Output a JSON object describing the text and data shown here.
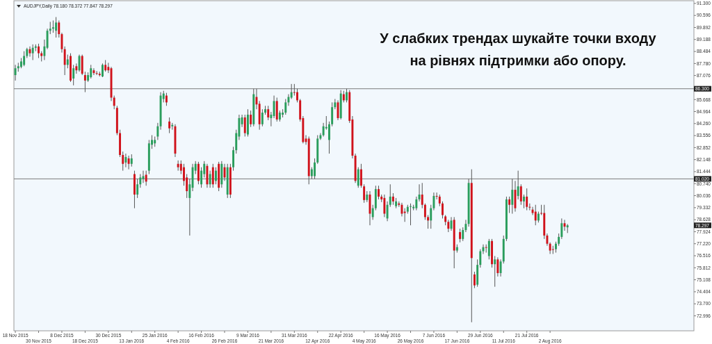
{
  "chart_data": {
    "type": "candlestick",
    "title": "AUDJPY,Daily 78.180 78.372 77.847 78.297",
    "categories": [
      "18 Nov 2015",
      null,
      null,
      null,
      null,
      null,
      null,
      null,
      "30 Nov 2015",
      null,
      null,
      null,
      null,
      null,
      null,
      null,
      "8 Dec 2015",
      null,
      null,
      null,
      null,
      null,
      null,
      null,
      "18 Dec 2015",
      null,
      null,
      null,
      null,
      null,
      null,
      null,
      "30 Dec 2015",
      null,
      null,
      null,
      null,
      null,
      null,
      null,
      "13 Jan 2016",
      null,
      null,
      null,
      null,
      null,
      null,
      null,
      "25 Jan 2016",
      null,
      null,
      null,
      null,
      null,
      null,
      null,
      "4 Feb 2016",
      null,
      null,
      null,
      null,
      null,
      null,
      null,
      "16 Feb 2016",
      null,
      null,
      null,
      null,
      null,
      null,
      null,
      "26 Feb 2016",
      null,
      null,
      null,
      null,
      null,
      null,
      null,
      "9 Mar 2016",
      null,
      null,
      null,
      null,
      null,
      null,
      null,
      "21 Mar 2016",
      null,
      null,
      null,
      null,
      null,
      null,
      null,
      "31 Mar 2016",
      null,
      null,
      null,
      null,
      null,
      null,
      null,
      "12 Apr 2016",
      null,
      null,
      null,
      null,
      null,
      null,
      null,
      "22 Apr 2016",
      null,
      null,
      null,
      null,
      null,
      null,
      null,
      "4 May 2016",
      null,
      null,
      null,
      null,
      null,
      null,
      null,
      "16 May 2016",
      null,
      null,
      null,
      null,
      null,
      null,
      null,
      "26 May 2016",
      null,
      null,
      null,
      null,
      null,
      null,
      null,
      "7 Jun 2016",
      null,
      null,
      null,
      null,
      null,
      null,
      null,
      "17 Jun 2016",
      null,
      null,
      null,
      null,
      null,
      null,
      null,
      "29 Jun 2016",
      null,
      null,
      null,
      null,
      null,
      null,
      null,
      "11 Jul 2016",
      null,
      null,
      null,
      null,
      null,
      null,
      null,
      "21 Jul 2016",
      null,
      null,
      null,
      null,
      null,
      null,
      null,
      "2 Aug 2016",
      null,
      null,
      null,
      null,
      null,
      null,
      null,
      null,
      null,
      null,
      null,
      null,
      null,
      null,
      null,
      null,
      null,
      null,
      null,
      null,
      null,
      null,
      null,
      null,
      null,
      null,
      null,
      null,
      null,
      null,
      null,
      null,
      null,
      null,
      null,
      null,
      null,
      null,
      null,
      null,
      null,
      null,
      null,
      null,
      null,
      null,
      null,
      null,
      null
    ],
    "ohlc": [
      [
        87.1,
        87.7,
        86.78,
        87.5
      ],
      [
        87.5,
        87.82,
        87.3,
        87.62
      ],
      [
        87.58,
        88.1,
        87.5,
        87.9
      ],
      [
        87.7,
        88.5,
        87.62,
        88.22
      ],
      [
        88.22,
        88.7,
        88.1,
        88.62
      ],
      [
        88.62,
        88.78,
        88.18,
        88.38
      ],
      [
        88.38,
        88.9,
        87.98,
        88.7
      ],
      [
        88.7,
        88.9,
        88.5,
        88.78
      ],
      [
        88.78,
        88.94,
        88.1,
        88.38
      ],
      [
        88.38,
        88.5,
        87.9,
        88.22
      ],
      [
        88.22,
        89.18,
        87.98,
        88.78
      ],
      [
        88.7,
        89.82,
        88.62,
        89.7
      ],
      [
        89.7,
        90.22,
        89.5,
        89.82
      ],
      [
        89.82,
        90.3,
        89.58,
        89.9
      ],
      [
        89.7,
        90.5,
        89.3,
        90.18
      ],
      [
        90.18,
        90.3,
        89.3,
        89.5
      ],
      [
        89.5,
        89.58,
        88.42,
        88.62
      ],
      [
        88.62,
        88.78,
        87.1,
        87.7
      ],
      [
        87.7,
        88.3,
        87.5,
        88.02
      ],
      [
        88.22,
        88.38,
        86.7,
        86.78
      ],
      [
        86.9,
        87.7,
        86.5,
        87.5
      ],
      [
        87.62,
        87.78,
        87.18,
        87.38
      ],
      [
        87.38,
        88.3,
        87.3,
        88.22
      ],
      [
        88.22,
        88.3,
        87.1,
        87.18
      ],
      [
        87.1,
        87.3,
        86.1,
        86.78
      ],
      [
        86.78,
        87.26,
        86.7,
        87.1
      ],
      [
        86.98,
        87.7,
        86.9,
        87.5
      ],
      [
        87.38,
        87.5,
        87.1,
        87.22
      ],
      [
        87.22,
        87.34,
        87.1,
        87.18
      ],
      [
        87.18,
        87.3,
        87.02,
        87.1
      ],
      [
        87.02,
        87.78,
        86.98,
        87.7
      ],
      [
        87.7,
        87.98,
        87.3,
        87.38
      ],
      [
        87.58,
        87.82,
        87.22,
        87.38
      ],
      [
        87.5,
        87.58,
        85.58,
        85.78
      ],
      [
        85.78,
        85.9,
        85.1,
        85.3
      ],
      [
        85.18,
        85.3,
        83.58,
        83.7
      ],
      [
        83.7,
        83.9,
        82.3,
        82.42
      ],
      [
        82.42,
        82.62,
        81.5,
        81.9
      ],
      [
        81.98,
        82.5,
        81.7,
        82.3
      ],
      [
        82.22,
        82.38,
        81.58,
        81.9
      ],
      [
        81.9,
        82.46,
        81.74,
        82.22
      ],
      [
        81.3,
        81.5,
        79.3,
        80.1
      ],
      [
        80.1,
        81.02,
        79.9,
        80.7
      ],
      [
        80.7,
        81.3,
        80.5,
        81.1
      ],
      [
        81.02,
        81.5,
        80.78,
        81.18
      ],
      [
        81.26,
        81.5,
        80.62,
        80.86
      ],
      [
        81.5,
        83.3,
        81.3,
        83.1
      ],
      [
        83.02,
        83.58,
        82.78,
        83.3
      ],
      [
        83.1,
        83.5,
        82.9,
        83.3
      ],
      [
        83.5,
        84.3,
        83.3,
        84.1
      ],
      [
        84.1,
        86.1,
        83.9,
        85.9
      ],
      [
        85.7,
        86.18,
        85.5,
        86.02
      ],
      [
        85.9,
        86.06,
        85.3,
        85.5
      ],
      [
        84.38,
        84.62,
        83.7,
        83.98
      ],
      [
        84.1,
        84.3,
        83.9,
        84.18
      ],
      [
        84.1,
        84.22,
        82.3,
        82.5
      ],
      [
        81.9,
        82.1,
        81.5,
        81.7
      ],
      [
        81.9,
        82.1,
        81.3,
        81.5
      ],
      [
        81.7,
        81.9,
        80.62,
        80.9
      ],
      [
        81.1,
        81.3,
        79.9,
        80.3
      ],
      [
        79.9,
        81.02,
        77.7,
        80.7
      ],
      [
        80.5,
        81.9,
        80.3,
        81.7
      ],
      [
        81.5,
        82.06,
        81.3,
        81.9
      ],
      [
        81.9,
        82.02,
        80.7,
        80.9
      ],
      [
        80.7,
        81.7,
        80.5,
        81.5
      ],
      [
        81.3,
        82.06,
        81.1,
        81.9
      ],
      [
        81.78,
        81.9,
        80.5,
        80.7
      ],
      [
        80.7,
        81.5,
        80.5,
        81.3
      ],
      [
        81.7,
        81.9,
        80.5,
        80.7
      ],
      [
        80.9,
        81.7,
        80.7,
        81.5
      ],
      [
        81.9,
        82.02,
        80.3,
        80.5
      ],
      [
        80.7,
        82.06,
        80.5,
        81.9
      ],
      [
        81.7,
        81.9,
        80.9,
        81.1
      ],
      [
        80.1,
        81.9,
        79.9,
        81.7
      ],
      [
        81.7,
        81.9,
        79.9,
        80.1
      ],
      [
        81.7,
        82.9,
        81.5,
        82.7
      ],
      [
        82.7,
        83.9,
        82.5,
        83.7
      ],
      [
        83.5,
        84.78,
        83.3,
        84.58
      ],
      [
        84.22,
        84.78,
        84.06,
        84.62
      ],
      [
        84.62,
        84.78,
        83.5,
        83.7
      ],
      [
        83.62,
        85.1,
        83.5,
        84.78
      ],
      [
        84.78,
        85.02,
        84.06,
        84.22
      ],
      [
        84.22,
        86.3,
        84.1,
        85.98
      ],
      [
        85.82,
        86.3,
        85.1,
        85.38
      ],
      [
        85.42,
        85.58,
        83.9,
        84.22
      ],
      [
        84.22,
        85.1,
        84.1,
        84.9
      ],
      [
        84.9,
        85.3,
        84.78,
        85.1
      ],
      [
        85.1,
        85.3,
        84.46,
        84.62
      ],
      [
        84.58,
        84.94,
        84.1,
        84.78
      ],
      [
        84.7,
        85.9,
        84.58,
        85.58
      ],
      [
        85.58,
        85.78,
        84.38,
        84.5
      ],
      [
        84.5,
        85.02,
        84.38,
        84.9
      ],
      [
        84.78,
        85.1,
        84.62,
        84.9
      ],
      [
        84.9,
        85.7,
        84.78,
        85.5
      ],
      [
        85.5,
        85.98,
        85.3,
        85.82
      ],
      [
        85.78,
        86.58,
        85.7,
        86.1
      ],
      [
        86.1,
        86.58,
        85.9,
        86.08
      ],
      [
        86.1,
        86.3,
        85.5,
        85.62
      ],
      [
        85.62,
        85.7,
        84.38,
        84.5
      ],
      [
        84.58,
        84.7,
        83.1,
        83.18
      ],
      [
        83.38,
        83.58,
        83.02,
        83.18
      ],
      [
        83.38,
        83.5,
        80.7,
        81.18
      ],
      [
        81.18,
        81.7,
        81.02,
        81.58
      ],
      [
        81.18,
        82.22,
        81.02,
        81.98
      ],
      [
        81.98,
        83.58,
        81.9,
        83.38
      ],
      [
        83.38,
        83.7,
        83.3,
        83.58
      ],
      [
        83.58,
        84.3,
        83.5,
        84.1
      ],
      [
        83.98,
        84.7,
        83.9,
        84.06
      ],
      [
        83.3,
        84.38,
        82.5,
        84.22
      ],
      [
        84.22,
        85.5,
        84.1,
        85.22
      ],
      [
        85.22,
        85.7,
        85.1,
        85.5
      ],
      [
        85.5,
        85.62,
        84.46,
        84.58
      ],
      [
        84.58,
        86.22,
        84.5,
        86.02
      ],
      [
        85.98,
        86.18,
        85.5,
        85.62
      ],
      [
        85.62,
        86.3,
        85.5,
        86.1
      ],
      [
        86.1,
        86.22,
        84.3,
        84.42
      ],
      [
        84.5,
        84.7,
        82.22,
        82.38
      ],
      [
        82.38,
        82.5,
        80.78,
        80.9
      ],
      [
        80.62,
        81.7,
        80.5,
        81.58
      ],
      [
        81.58,
        81.9,
        80.5,
        80.62
      ],
      [
        80.58,
        80.7,
        79.62,
        79.78
      ],
      [
        79.78,
        80.3,
        79.66,
        80.1
      ],
      [
        80.1,
        80.3,
        78.3,
        78.98
      ],
      [
        78.78,
        79.5,
        78.62,
        79.3
      ],
      [
        79.3,
        80.62,
        79.18,
        80.42
      ],
      [
        80.42,
        80.62,
        79.82,
        79.98
      ],
      [
        79.98,
        80.1,
        79.66,
        79.82
      ],
      [
        79.9,
        80.1,
        78.78,
        78.98
      ],
      [
        78.7,
        79.7,
        78.54,
        79.5
      ],
      [
        79.5,
        80.7,
        79.38,
        79.98
      ],
      [
        79.98,
        80.18,
        79.5,
        79.7
      ],
      [
        79.42,
        79.9,
        79.3,
        79.7
      ],
      [
        79.58,
        79.7,
        79.38,
        79.5
      ],
      [
        79.5,
        79.62,
        78.82,
        78.98
      ],
      [
        79.1,
        79.3,
        78.5,
        79.02
      ],
      [
        79.1,
        79.5,
        78.98,
        79.38
      ],
      [
        79.38,
        79.58,
        78.3,
        79.42
      ],
      [
        79.3,
        79.5,
        79.18,
        79.38
      ],
      [
        79.3,
        79.98,
        79.18,
        79.82
      ],
      [
        79.82,
        80.7,
        79.7,
        80.1
      ],
      [
        80.1,
        80.78,
        79.3,
        79.5
      ],
      [
        79.5,
        79.58,
        78.62,
        78.78
      ],
      [
        78.78,
        78.9,
        78.1,
        78.58
      ],
      [
        78.58,
        79.5,
        78.1,
        79.3
      ],
      [
        79.3,
        80.22,
        79.18,
        80.02
      ],
      [
        80.02,
        80.22,
        79.82,
        79.98
      ],
      [
        79.98,
        80.1,
        79.42,
        79.58
      ],
      [
        79.58,
        79.7,
        78.7,
        78.9
      ],
      [
        78.82,
        78.9,
        78.3,
        78.5
      ],
      [
        78.5,
        78.62,
        77.9,
        78.1
      ],
      [
        78.1,
        78.78,
        77.98,
        78.58
      ],
      [
        78.62,
        78.78,
        75.78,
        76.82
      ],
      [
        76.82,
        77.18,
        76.7,
        77.02
      ],
      [
        77.9,
        78.1,
        77.3,
        77.5
      ],
      [
        77.5,
        78.18,
        77.38,
        78.02
      ],
      [
        78.02,
        78.62,
        77.9,
        78.38
      ],
      [
        78.38,
        81.02,
        78.22,
        80.78
      ],
      [
        80.78,
        81.58,
        72.62,
        76.38
      ],
      [
        75.42,
        75.58,
        74.62,
        74.78
      ],
      [
        74.82,
        76.3,
        74.7,
        75.98
      ],
      [
        75.98,
        76.9,
        75.82,
        76.78
      ],
      [
        76.78,
        77.18,
        76.62,
        77.02
      ],
      [
        77.02,
        77.18,
        76.7,
        76.98
      ],
      [
        76.5,
        77.5,
        76.3,
        77.38
      ],
      [
        77.38,
        77.5,
        75.82,
        76.02
      ],
      [
        76.02,
        76.5,
        74.7,
        76.3
      ],
      [
        76.3,
        76.42,
        75.3,
        75.5
      ],
      [
        75.5,
        76.3,
        75.3,
        76.18
      ],
      [
        76.18,
        77.7,
        76.06,
        77.5
      ],
      [
        77.5,
        79.98,
        77.38,
        79.82
      ],
      [
        79.82,
        79.98,
        79.02,
        79.5
      ],
      [
        79.5,
        81.02,
        78.98,
        80.38
      ],
      [
        80.38,
        80.9,
        79.1,
        79.3
      ],
      [
        80.02,
        81.5,
        79.82,
        80.58
      ],
      [
        80.58,
        80.7,
        79.5,
        79.7
      ],
      [
        79.7,
        80.1,
        79.3,
        79.98
      ],
      [
        79.98,
        80.46,
        79.18,
        79.38
      ],
      [
        79.38,
        79.58,
        79.18,
        79.36
      ],
      [
        79.22,
        79.38,
        78.9,
        79.02
      ],
      [
        79.1,
        79.5,
        78.3,
        78.58
      ],
      [
        78.58,
        79.1,
        78.46,
        78.98
      ],
      [
        79.02,
        79.5,
        78.9,
        79.0
      ],
      [
        79.02,
        79.5,
        77.5,
        77.7
      ],
      [
        77.7,
        77.82,
        77.1,
        77.22
      ],
      [
        77.22,
        77.3,
        76.62,
        76.82
      ],
      [
        76.9,
        77.1,
        76.62,
        76.88
      ],
      [
        76.9,
        77.34,
        76.7,
        77.22
      ],
      [
        77.22,
        77.82,
        77.1,
        77.62
      ],
      [
        77.62,
        78.7,
        77.5,
        78.42
      ],
      [
        78.42,
        78.62,
        77.98,
        78.22
      ],
      [
        78.18,
        78.372,
        77.847,
        78.297
      ],
      null,
      null,
      null,
      null,
      null,
      null,
      null,
      null,
      null,
      null,
      null,
      null,
      null,
      null,
      null,
      null,
      null,
      null,
      null,
      null,
      null,
      null,
      null,
      null,
      null,
      null,
      null,
      null,
      null,
      null,
      null,
      null,
      null,
      null,
      null,
      null,
      null,
      null,
      null,
      null,
      null,
      null,
      null
    ],
    "ylim": [
      72.2,
      91.5
    ],
    "yticks": [
      {
        "value": 91.3,
        "label": "91.300"
      },
      {
        "value": 90.596,
        "label": "90.596"
      },
      {
        "value": 89.892,
        "label": "89.892"
      },
      {
        "value": 89.188,
        "label": "89.188"
      },
      {
        "value": 88.484,
        "label": "88.484"
      },
      {
        "value": 87.78,
        "label": "87.780"
      },
      {
        "value": 87.076,
        "label": "87.076"
      },
      {
        "value": 85.668,
        "label": "85.668"
      },
      {
        "value": 84.964,
        "label": "84.964"
      },
      {
        "value": 84.26,
        "label": "84.260"
      },
      {
        "value": 83.556,
        "label": "83.556"
      },
      {
        "value": 82.852,
        "label": "82.852"
      },
      {
        "value": 82.148,
        "label": "82.148"
      },
      {
        "value": 81.444,
        "label": "81.444"
      },
      {
        "value": 80.74,
        "label": "80.740"
      },
      {
        "value": 80.036,
        "label": "80.036"
      },
      {
        "value": 79.332,
        "label": "79.332"
      },
      {
        "value": 78.628,
        "label": "78.628"
      },
      {
        "value": 77.924,
        "label": "77.924"
      },
      {
        "value": 77.22,
        "label": "77.220"
      },
      {
        "value": 76.516,
        "label": "76.516"
      },
      {
        "value": 75.812,
        "label": "75.812"
      },
      {
        "value": 75.108,
        "label": "75.108"
      },
      {
        "value": 74.404,
        "label": "74.404"
      },
      {
        "value": 73.7,
        "label": "73.700"
      },
      {
        "value": 72.996,
        "label": "72.996"
      }
    ],
    "ref_lines": [
      {
        "axis": "y",
        "value": 86.3,
        "label": "86.300"
      },
      {
        "axis": "y",
        "value": 81.02,
        "label": "81.020"
      }
    ],
    "annotations": [
      "У слабких трендах шукайте точки входу на рівнях підтримки або опору.",
      {
        "text": "78.297",
        "y": 78.297
      }
    ]
  }
}
